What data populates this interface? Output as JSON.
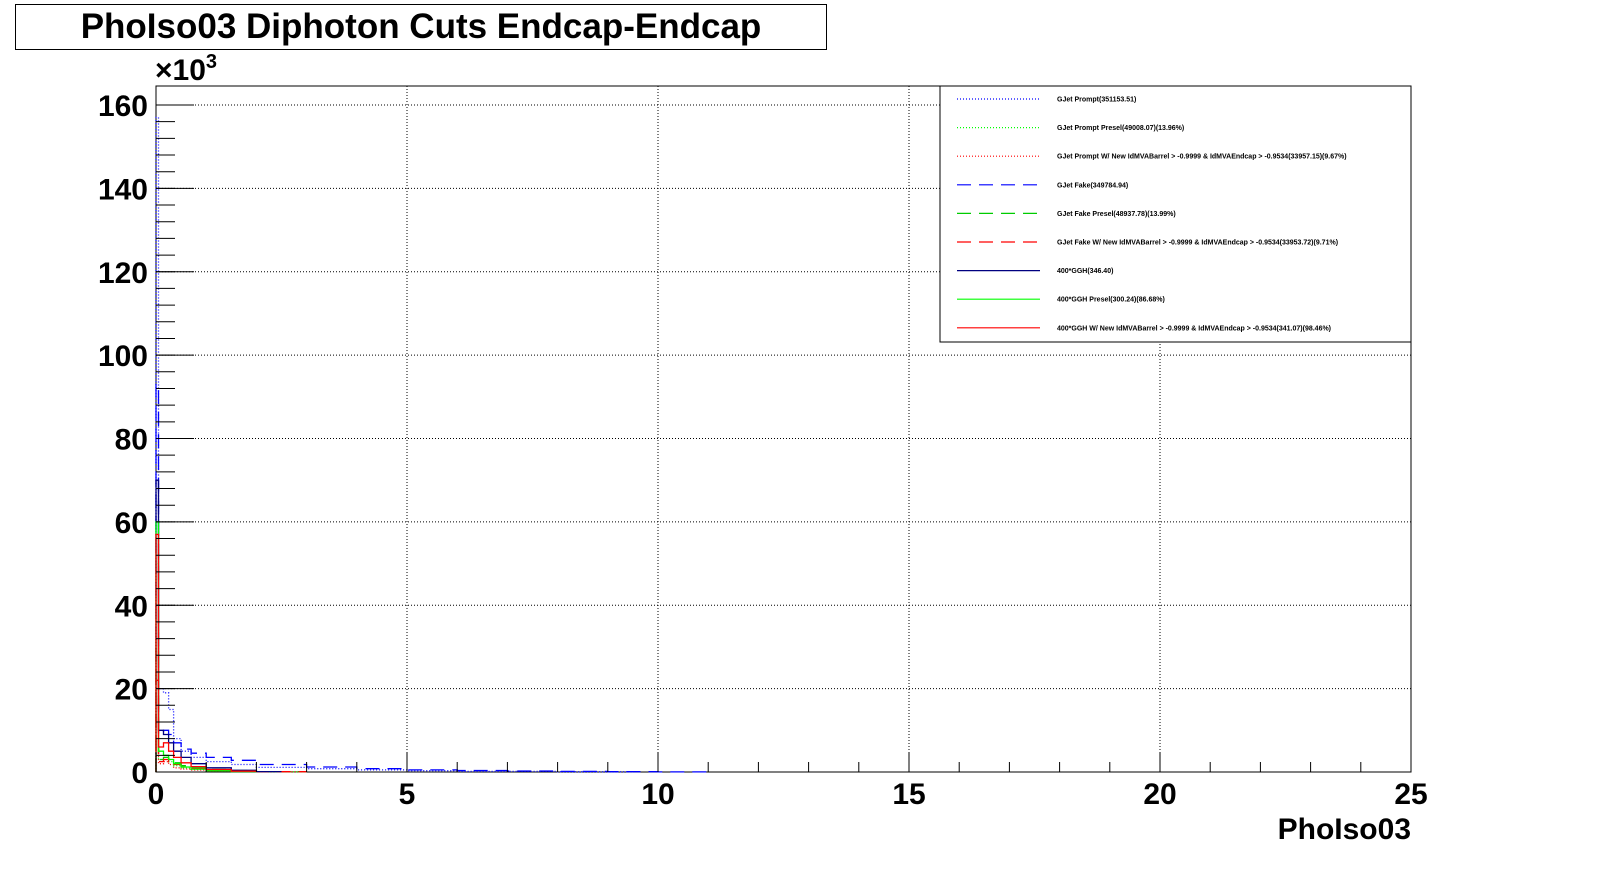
{
  "chart_data": {
    "type": "line",
    "title": "PhoIso03 Diphoton Cuts Endcap-Endcap",
    "xlabel": "PhoIso03",
    "ylabel": "",
    "xlim": [
      0,
      25
    ],
    "ylim": [
      0,
      165000
    ],
    "y_multiplier_label": "×10",
    "y_multiplier_exp": "3",
    "grid": true,
    "legend_position": "top-right",
    "x_ticks": [
      "0",
      "5",
      "10",
      "15",
      "20",
      "25"
    ],
    "y_ticks": [
      "0",
      "20",
      "40",
      "60",
      "80",
      "100",
      "120",
      "140",
      "160"
    ],
    "series": [
      {
        "name": "GJet Prompt(351153.51)",
        "color": "#0000ff",
        "dash": "dotted",
        "x": [
          0.05,
          0.15,
          0.25,
          0.35,
          0.5,
          0.7,
          1.0,
          1.5,
          2.0,
          3.0,
          4.0,
          5.0,
          6.0,
          8.0,
          9.5
        ],
        "y": [
          157000,
          20000,
          19000,
          15000,
          8000,
          5000,
          3500,
          2500,
          1800,
          1100,
          800,
          500,
          300,
          150,
          50
        ]
      },
      {
        "name": "GJet Prompt Presel(49008.07)(13.96%)",
        "color": "#00ff00",
        "dash": "dotted",
        "x": [
          0.05,
          0.15,
          0.25,
          0.35,
          0.5,
          0.7,
          1.0,
          1.5,
          2.0,
          3.0
        ],
        "y": [
          50000,
          3000,
          3500,
          2500,
          1500,
          900,
          600,
          350,
          200,
          50
        ]
      },
      {
        "name": "GJet Prompt W/ New IdMVABarrel > -0.9999 & IdMVAEndcap > -0.9534(33957.15)(9.67%)",
        "color": "#ff0000",
        "dash": "dotted",
        "x": [
          0.05,
          0.15,
          0.25,
          0.35,
          0.5,
          0.7,
          1.0,
          1.5,
          2.0,
          3.0
        ],
        "y": [
          34000,
          2000,
          2500,
          1800,
          1000,
          700,
          450,
          250,
          150,
          50
        ]
      },
      {
        "name": "GJet Fake(349784.94)",
        "color": "#0000ff",
        "dash": "dashed",
        "x": [
          0.05,
          0.15,
          0.25,
          0.35,
          0.5,
          0.7,
          1.0,
          1.5,
          2.0,
          3.0,
          4.0,
          5.0,
          6.0,
          7.0,
          8.0,
          9.0,
          10.0,
          11.0
        ],
        "y": [
          93000,
          9000,
          10000,
          9000,
          7000,
          5500,
          4500,
          3500,
          2800,
          1800,
          1200,
          800,
          500,
          350,
          250,
          150,
          80,
          30
        ]
      },
      {
        "name": "GJet Fake Presel(48937.78)(13.99%)",
        "color": "#00cc00",
        "dash": "dashed",
        "x": [
          0.05,
          0.15,
          0.25,
          0.35,
          0.5,
          0.7,
          1.0,
          1.5,
          2.0,
          3.0
        ],
        "y": [
          30000,
          3000,
          3500,
          3000,
          2200,
          1500,
          1000,
          600,
          350,
          100
        ]
      },
      {
        "name": "GJet Fake W/ New IdMVABarrel > -0.9999 & IdMVAEndcap > -0.9534(33953.72)(9.71%)",
        "color": "#ff0000",
        "dash": "dashed",
        "x": [
          0.05,
          0.15,
          0.25,
          0.35,
          0.5,
          0.7,
          1.0,
          1.5,
          2.0,
          3.0
        ],
        "y": [
          22000,
          2500,
          3000,
          2500,
          1800,
          1200,
          800,
          450,
          250,
          80
        ]
      },
      {
        "name": "400*GGH(346.40)",
        "color": "#000080",
        "dash": "solid",
        "x": [
          0.05,
          0.15,
          0.25,
          0.35,
          0.5,
          0.7,
          1.0,
          1.5,
          2.0,
          2.5
        ],
        "y": [
          70000,
          10000,
          9000,
          7000,
          5000,
          3500,
          2000,
          1000,
          400,
          100
        ]
      },
      {
        "name": "400*GGH Presel(300.24)(86.68%)",
        "color": "#00ff00",
        "dash": "solid",
        "x": [
          0.05,
          0.15,
          0.25,
          0.35,
          0.5,
          0.7,
          1.0,
          1.5,
          2.0
        ],
        "y": [
          60000,
          5000,
          4000,
          3000,
          2000,
          1200,
          700,
          300,
          100
        ]
      },
      {
        "name": "400*GGH W/ New IdMVABarrel > -0.9999 & IdMVAEndcap > -0.9534(341.07)(98.46%)",
        "color": "#ff0000",
        "dash": "solid",
        "x": [
          0.05,
          0.15,
          0.25,
          0.35,
          0.5,
          0.7,
          1.0,
          1.5,
          2.0
        ],
        "y": [
          57000,
          6000,
          7000,
          5000,
          3500,
          2200,
          1300,
          600,
          200
        ]
      }
    ]
  }
}
